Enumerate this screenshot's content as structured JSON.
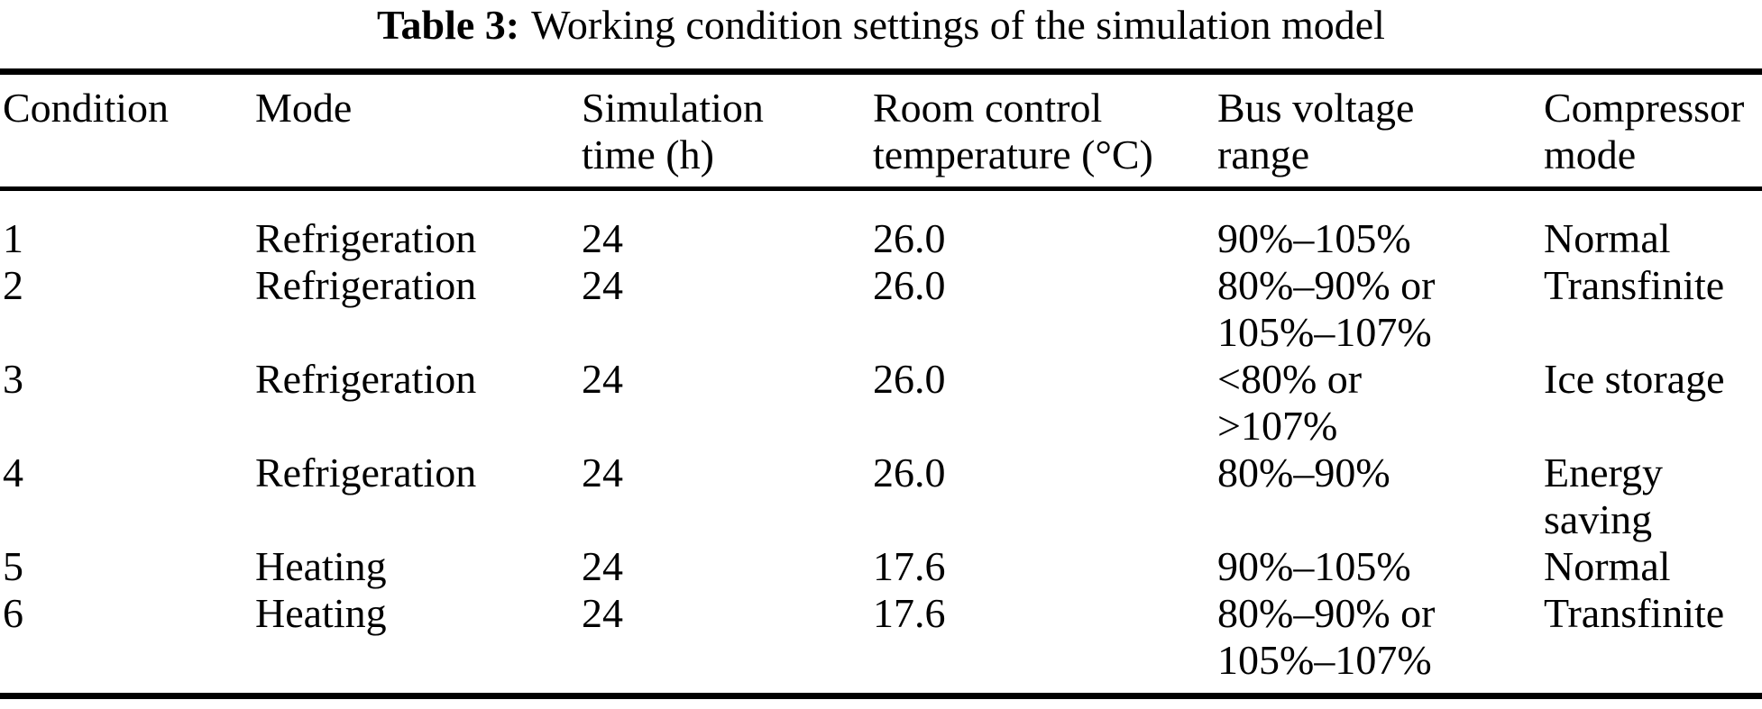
{
  "colors": {
    "text": "#000000",
    "background": "#ffffff",
    "rule": "#000000"
  },
  "caption": {
    "label": "Table 3:",
    "text": "Working condition settings of the simulation model"
  },
  "table": {
    "columns": [
      {
        "key": "condition",
        "label": "Condition"
      },
      {
        "key": "mode",
        "label": "Mode"
      },
      {
        "key": "simulation-time",
        "label": "Simulation\ntime (h)"
      },
      {
        "key": "room-control-temperature",
        "label": "Room control\ntemperature (°C)"
      },
      {
        "key": "bus-voltage-range",
        "label": "Bus voltage\nrange"
      },
      {
        "key": "compressor-mode",
        "label": "Compressor\nmode"
      }
    ],
    "rows": [
      {
        "cells": [
          "1",
          "Refrigeration",
          "24",
          "26.0",
          "90%–105%",
          "Normal"
        ]
      },
      {
        "cells": [
          "2",
          "Refrigeration",
          "24",
          "26.0",
          "80%–90% or\n105%–107%",
          "Transfinite"
        ]
      },
      {
        "cells": [
          "3",
          "Refrigeration",
          "24",
          "26.0",
          "<80% or\n>107%",
          "Ice storage"
        ]
      },
      {
        "cells": [
          "4",
          "Refrigeration",
          "24",
          "26.0",
          "80%–90%",
          "Energy\nsaving"
        ]
      },
      {
        "cells": [
          "5",
          "Heating",
          "24",
          "17.6",
          "90%–105%",
          "Normal"
        ]
      },
      {
        "cells": [
          "6",
          "Heating",
          "24",
          "17.6",
          "80%–90% or\n105%–107%",
          "Transfinite"
        ]
      }
    ]
  }
}
